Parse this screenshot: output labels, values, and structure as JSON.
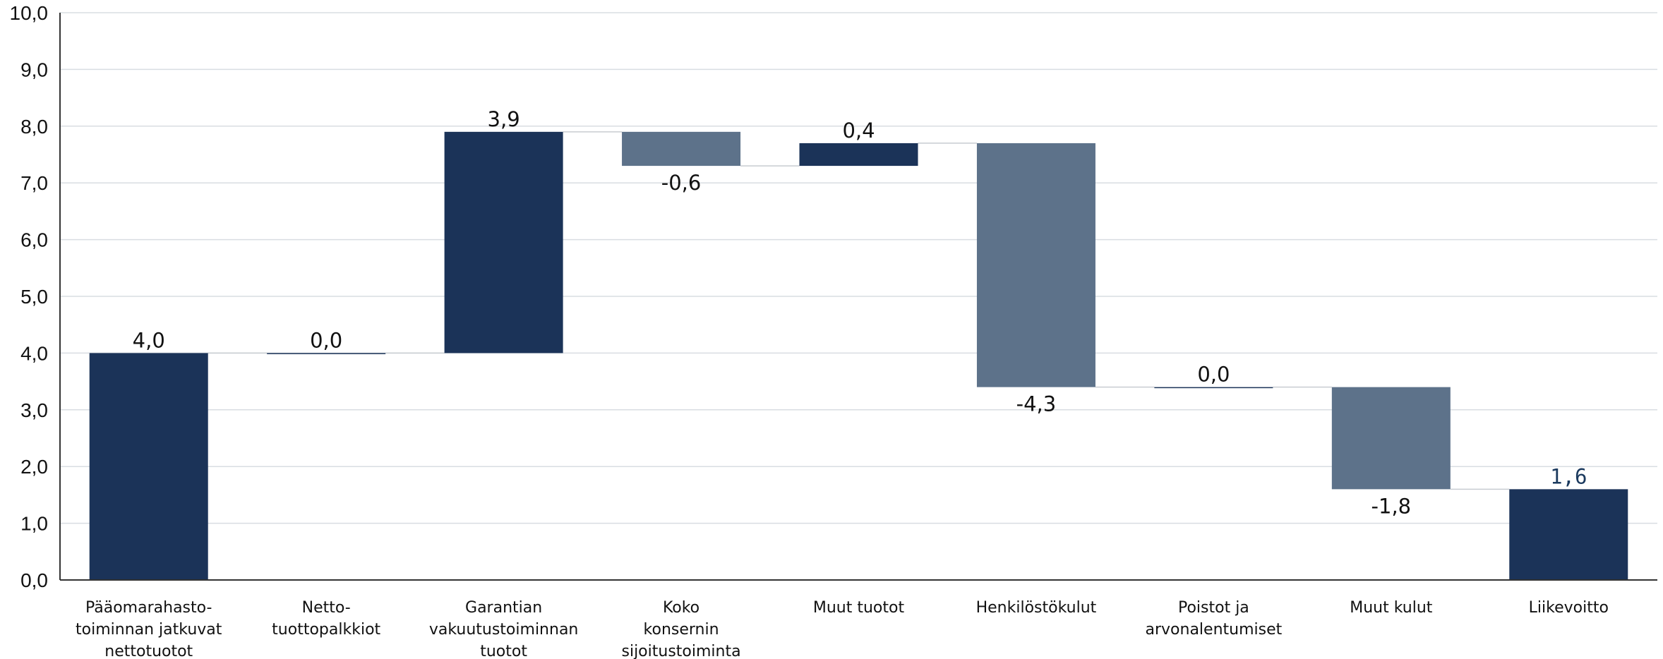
{
  "chart_data": {
    "type": "waterfall",
    "categories": [
      [
        "Pääomarahasto-",
        "toiminnan jatkuvat",
        "nettotuotot"
      ],
      [
        "Netto-",
        "tuottopalkkiot"
      ],
      [
        "Garantian",
        "vakuutustoiminnan",
        "tuotot"
      ],
      [
        "Koko",
        "konsernin",
        "sijoitustoiminta"
      ],
      [
        "Muut tuotot"
      ],
      [
        "Henkilöstökulut"
      ],
      [
        "Poistot ja",
        "arvonalentumiset"
      ],
      [
        "Muut kulut"
      ],
      [
        "Liikevoitto"
      ]
    ],
    "values": [
      4.0,
      0.0,
      3.9,
      -0.6,
      0.4,
      -4.3,
      0.0,
      -1.8,
      1.6
    ],
    "value_labels": [
      "4,0",
      "0,0",
      "3,9",
      "-0,6",
      "0,4",
      "-4,3",
      "0,0",
      "-1,8",
      "1,6"
    ],
    "kinds": [
      "total",
      "delta",
      "delta",
      "delta",
      "delta",
      "delta",
      "delta",
      "delta",
      "total"
    ],
    "ylim": [
      0,
      10
    ],
    "yticks": [
      "0,0",
      "1,0",
      "2,0",
      "3,0",
      "4,0",
      "5,0",
      "6,0",
      "7,0",
      "8,0",
      "9,0",
      "10,0"
    ],
    "grid": true,
    "colors": {
      "increase": "#1b3358",
      "decrease": "#5d728a",
      "total": "#1b3358",
      "grid": "#d9dde2",
      "axis": "#333333",
      "connector": "#c8ccd1"
    }
  }
}
